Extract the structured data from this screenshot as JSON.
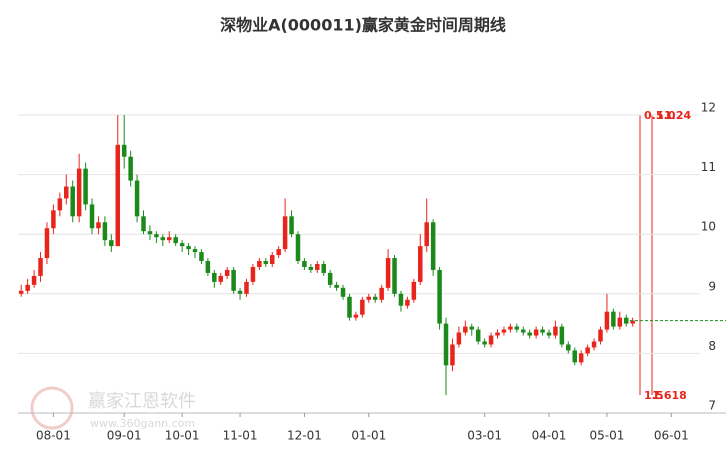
{
  "chart_data": {
    "type": "candlestick",
    "title": "深物业A(000011)赢家黄金时间周期线",
    "categories": [
      null,
      null,
      null,
      null,
      null,
      "08-01",
      null,
      null,
      null,
      null,
      null,
      null,
      null,
      null,
      null,
      null,
      "09-01",
      null,
      null,
      null,
      null,
      null,
      null,
      null,
      null,
      "10-01",
      null,
      null,
      null,
      null,
      null,
      null,
      null,
      null,
      "11-01",
      null,
      null,
      null,
      null,
      null,
      null,
      null,
      null,
      null,
      "12-01",
      null,
      null,
      null,
      null,
      null,
      null,
      null,
      null,
      null,
      "01-01",
      null,
      null,
      null,
      null,
      null,
      null,
      null,
      null,
      null,
      null,
      null,
      null,
      null,
      null,
      null,
      null,
      null,
      "03-01",
      null,
      null,
      null,
      null,
      null,
      null,
      null,
      null,
      null,
      "04-01",
      null,
      null,
      null,
      null,
      null,
      null,
      null,
      null,
      "05-01",
      null,
      null,
      null,
      null,
      null,
      null,
      null,
      null,
      null,
      "06-01",
      null,
      null,
      null,
      null,
      null,
      null,
      null,
      null
    ],
    "ohlc": [
      [
        9.0,
        9.15,
        8.95,
        9.05
      ],
      [
        9.05,
        9.25,
        9.0,
        9.15
      ],
      [
        9.15,
        9.4,
        9.1,
        9.3
      ],
      [
        9.3,
        9.7,
        9.2,
        9.6
      ],
      [
        9.6,
        10.2,
        9.5,
        10.1
      ],
      [
        10.1,
        10.5,
        10.0,
        10.4
      ],
      [
        10.4,
        10.7,
        10.3,
        10.6
      ],
      [
        10.6,
        11.0,
        10.5,
        10.8
      ],
      [
        10.8,
        10.9,
        10.2,
        10.3
      ],
      [
        10.3,
        11.35,
        10.2,
        11.1
      ],
      [
        11.1,
        11.2,
        10.4,
        10.5
      ],
      [
        10.5,
        10.6,
        10.0,
        10.1
      ],
      [
        10.1,
        10.3,
        10.0,
        10.2
      ],
      [
        10.2,
        10.3,
        9.8,
        9.9
      ],
      [
        9.9,
        10.0,
        9.7,
        9.8
      ],
      [
        9.8,
        12.0,
        9.8,
        11.5
      ],
      [
        11.5,
        12.0,
        11.1,
        11.3
      ],
      [
        11.3,
        11.4,
        10.8,
        10.9
      ],
      [
        10.9,
        11.0,
        10.2,
        10.3
      ],
      [
        10.3,
        10.4,
        10.0,
        10.05
      ],
      [
        10.05,
        10.15,
        9.9,
        10.0
      ],
      [
        10.0,
        10.05,
        9.85,
        9.95
      ],
      [
        9.95,
        10.0,
        9.8,
        9.9
      ],
      [
        9.9,
        10.05,
        9.85,
        9.95
      ],
      [
        9.95,
        10.0,
        9.8,
        9.85
      ],
      [
        9.85,
        9.9,
        9.7,
        9.8
      ],
      [
        9.8,
        9.85,
        9.65,
        9.75
      ],
      [
        9.75,
        9.8,
        9.6,
        9.7
      ],
      [
        9.7,
        9.75,
        9.5,
        9.55
      ],
      [
        9.55,
        9.6,
        9.3,
        9.35
      ],
      [
        9.35,
        9.4,
        9.1,
        9.2
      ],
      [
        9.2,
        9.35,
        9.15,
        9.3
      ],
      [
        9.3,
        9.45,
        9.25,
        9.4
      ],
      [
        9.4,
        9.45,
        9.0,
        9.05
      ],
      [
        9.05,
        9.1,
        8.9,
        9.0
      ],
      [
        9.0,
        9.25,
        8.95,
        9.2
      ],
      [
        9.2,
        9.5,
        9.15,
        9.45
      ],
      [
        9.45,
        9.6,
        9.4,
        9.55
      ],
      [
        9.55,
        9.6,
        9.45,
        9.5
      ],
      [
        9.5,
        9.7,
        9.45,
        9.65
      ],
      [
        9.65,
        9.8,
        9.6,
        9.75
      ],
      [
        9.75,
        10.6,
        9.7,
        10.3
      ],
      [
        10.3,
        10.4,
        9.95,
        10.0
      ],
      [
        10.0,
        10.05,
        9.5,
        9.55
      ],
      [
        9.55,
        9.6,
        9.4,
        9.45
      ],
      [
        9.45,
        9.5,
        9.35,
        9.4
      ],
      [
        9.4,
        9.55,
        9.35,
        9.5
      ],
      [
        9.5,
        9.55,
        9.3,
        9.35
      ],
      [
        9.35,
        9.4,
        9.1,
        9.15
      ],
      [
        9.15,
        9.2,
        9.05,
        9.1
      ],
      [
        9.1,
        9.15,
        8.9,
        8.95
      ],
      [
        8.95,
        9.0,
        8.55,
        8.6
      ],
      [
        8.6,
        8.7,
        8.55,
        8.65
      ],
      [
        8.65,
        8.95,
        8.6,
        8.9
      ],
      [
        8.9,
        9.0,
        8.85,
        8.95
      ],
      [
        8.95,
        9.0,
        8.85,
        8.9
      ],
      [
        8.9,
        9.15,
        8.85,
        9.1
      ],
      [
        9.1,
        9.75,
        9.05,
        9.6
      ],
      [
        9.6,
        9.65,
        8.95,
        9.0
      ],
      [
        9.0,
        9.05,
        8.7,
        8.8
      ],
      [
        8.8,
        8.95,
        8.75,
        8.9
      ],
      [
        8.9,
        9.25,
        8.85,
        9.2
      ],
      [
        9.2,
        10.0,
        9.15,
        9.8
      ],
      [
        9.8,
        10.6,
        9.7,
        10.2
      ],
      [
        10.2,
        10.25,
        9.3,
        9.4
      ],
      [
        9.4,
        9.45,
        8.4,
        8.5
      ],
      [
        8.5,
        8.6,
        7.3,
        7.8
      ],
      [
        7.8,
        8.25,
        7.7,
        8.15
      ],
      [
        8.15,
        8.45,
        8.1,
        8.35
      ],
      [
        8.35,
        8.55,
        8.3,
        8.45
      ],
      [
        8.45,
        8.5,
        8.3,
        8.4
      ],
      [
        8.4,
        8.45,
        8.15,
        8.2
      ],
      [
        8.2,
        8.25,
        8.1,
        8.15
      ],
      [
        8.15,
        8.35,
        8.1,
        8.3
      ],
      [
        8.3,
        8.4,
        8.25,
        8.35
      ],
      [
        8.35,
        8.45,
        8.3,
        8.4
      ],
      [
        8.4,
        8.5,
        8.35,
        8.45
      ],
      [
        8.45,
        8.5,
        8.35,
        8.4
      ],
      [
        8.4,
        8.45,
        8.3,
        8.35
      ],
      [
        8.35,
        8.4,
        8.25,
        8.3
      ],
      [
        8.3,
        8.45,
        8.25,
        8.4
      ],
      [
        8.4,
        8.45,
        8.3,
        8.35
      ],
      [
        8.35,
        8.4,
        8.25,
        8.3
      ],
      [
        8.3,
        8.55,
        8.25,
        8.45
      ],
      [
        8.45,
        8.5,
        8.1,
        8.15
      ],
      [
        8.15,
        8.2,
        8.0,
        8.05
      ],
      [
        8.05,
        8.1,
        7.8,
        7.85
      ],
      [
        7.85,
        8.05,
        7.8,
        8.0
      ],
      [
        8.0,
        8.15,
        7.95,
        8.1
      ],
      [
        8.1,
        8.25,
        8.05,
        8.2
      ],
      [
        8.2,
        8.45,
        8.15,
        8.4
      ],
      [
        8.4,
        9.0,
        8.35,
        8.7
      ],
      [
        8.7,
        8.75,
        8.4,
        8.45
      ],
      [
        8.45,
        8.7,
        8.4,
        8.6
      ],
      [
        8.6,
        8.65,
        8.45,
        8.5
      ],
      [
        8.5,
        8.6,
        8.45,
        8.55
      ],
      null,
      null,
      null,
      null,
      null,
      null,
      null,
      null,
      null,
      null,
      null,
      null,
      null,
      null
    ],
    "up_color": "#e8251c",
    "down_color": "#1b8a1b",
    "ylim": [
      7,
      12
    ],
    "yticks": [
      7,
      8,
      9,
      10,
      11,
      12
    ],
    "grid": true,
    "reference_line": 8.55,
    "reference_color": "#1b8a1b",
    "golden_labels_top": [
      "0.5",
      "1.0",
      "1.24"
    ],
    "golden_labels_bottom": [
      "1.5",
      "1.618"
    ],
    "golden_color": "#e8251c",
    "watermark": "赢家江恩软件",
    "watermark_url": "www.360gann.com"
  }
}
